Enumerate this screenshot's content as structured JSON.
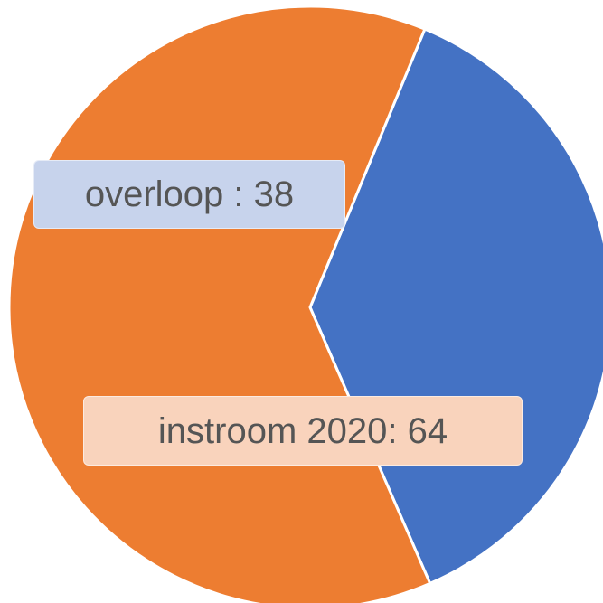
{
  "chart_data": {
    "type": "pie",
    "slices": [
      {
        "label": "overloop",
        "value": 38,
        "data_label": "overloop : 38",
        "color": "#4472C4",
        "label_bg": "#C7D3EC"
      },
      {
        "label": "instroom 2020",
        "value": 64,
        "data_label": "instroom 2020: 64",
        "color": "#ED7D31",
        "label_bg": "#F9D3BC"
      }
    ],
    "title": "",
    "legend": "none"
  }
}
